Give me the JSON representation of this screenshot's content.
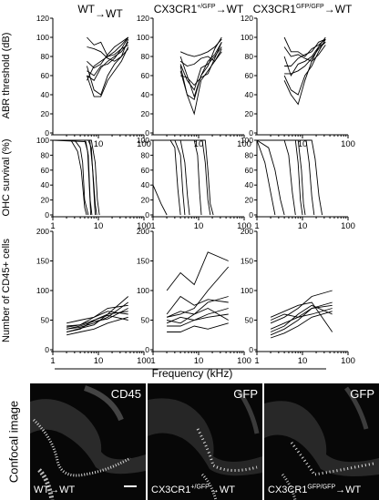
{
  "columns": [
    {
      "pre": "WT",
      "sup": "",
      "post": "→WT"
    },
    {
      "pre": "CX3CR1",
      "sup": "+/GFP",
      "post": "→WT"
    },
    {
      "pre": "CX3CR1",
      "sup": "GFP/GFP",
      "post": "→WT"
    }
  ],
  "x_axis_label": "Frequency (kHz)",
  "confocal": {
    "row_label": "Confocal image",
    "panels": [
      {
        "corner_label": "CD45",
        "genotype_pre": "WT",
        "genotype_sup": "",
        "genotype_post": "→WT"
      },
      {
        "corner_label": "GFP",
        "genotype_pre": "CX3CR1",
        "genotype_sup": "+/GFP",
        "genotype_post": "→WT"
      },
      {
        "corner_label": "GFP",
        "genotype_pre": "CX3CR1",
        "genotype_sup": "GFP/GFP",
        "genotype_post": "→WT"
      }
    ]
  },
  "chart_data": [
    {
      "type": "line",
      "row": "abr",
      "ylabel": "ABR threshold (dB)",
      "xscale": "log",
      "xlim": [
        1,
        100
      ],
      "xticks": [
        10,
        100
      ],
      "xtick_labels": [
        "10",
        "100"
      ],
      "ylim": [
        0,
        120
      ],
      "yticks": [
        0,
        20,
        40,
        60,
        80,
        100,
        120
      ],
      "ytick_labels": [
        "0",
        "20",
        "40",
        "60",
        "80",
        "100",
        "120"
      ],
      "panels": [
        {
          "column": 0,
          "x": [
            5.6,
            8,
            11.3,
            16,
            22.6,
            32,
            45
          ],
          "series": [
            {
              "values": [
                60,
                55,
                68,
                75,
                80,
                85,
                95
              ]
            },
            {
              "values": [
                65,
                60,
                70,
                72,
                78,
                88,
                92
              ]
            },
            {
              "values": [
                70,
                45,
                40,
                60,
                72,
                80,
                98
              ]
            },
            {
              "values": [
                60,
                38,
                38,
                55,
                65,
                75,
                90
              ]
            },
            {
              "values": [
                100,
                92,
                95,
                80,
                82,
                88,
                100
              ]
            },
            {
              "values": [
                75,
                68,
                72,
                82,
                90,
                95,
                100
              ]
            },
            {
              "values": [
                55,
                70,
                75,
                80,
                85,
                92,
                100
              ]
            },
            {
              "values": [
                90,
                88,
                85,
                78,
                75,
                80,
                88
              ]
            }
          ]
        },
        {
          "column": 1,
          "x": [
            4,
            5.6,
            8,
            11.3,
            16,
            22.6,
            32
          ],
          "series": [
            {
              "values": [
                65,
                40,
                35,
                60,
                75,
                82,
                95
              ]
            },
            {
              "values": [
                72,
                55,
                45,
                68,
                72,
                80,
                90
              ]
            },
            {
              "values": [
                80,
                60,
                38,
                60,
                70,
                88,
                100
              ]
            },
            {
              "values": [
                70,
                40,
                20,
                55,
                65,
                75,
                85
              ]
            },
            {
              "values": [
                60,
                58,
                50,
                58,
                62,
                78,
                95
              ]
            },
            {
              "values": [
                75,
                70,
                72,
                78,
                80,
                75,
                88
              ]
            },
            {
              "values": [
                85,
                82,
                80,
                82,
                85,
                90,
                98
              ]
            }
          ]
        },
        {
          "column": 2,
          "x": [
            4,
            5.6,
            8,
            11.3,
            16,
            22.6,
            32
          ],
          "series": [
            {
              "values": [
                55,
                40,
                30,
                55,
                75,
                90,
                95
              ]
            },
            {
              "values": [
                60,
                45,
                40,
                60,
                70,
                85,
                98
              ]
            },
            {
              "values": [
                80,
                60,
                72,
                75,
                80,
                90,
                100
              ]
            },
            {
              "values": [
                100,
                85,
                85,
                80,
                88,
                92,
                98
              ]
            },
            {
              "values": [
                70,
                70,
                78,
                82,
                85,
                95,
                98
              ]
            },
            {
              "values": [
                90,
                80,
                82,
                78,
                75,
                82,
                92
              ]
            },
            {
              "values": [
                62,
                62,
                65,
                70,
                78,
                88,
                95
              ]
            }
          ]
        }
      ]
    },
    {
      "type": "line",
      "row": "ohc",
      "ylabel": "OHC survival (%)",
      "xscale": "log",
      "xlim": [
        1,
        100
      ],
      "xticks": [
        1,
        10,
        100
      ],
      "xtick_labels": [
        "1",
        "10",
        "100"
      ],
      "ylim": [
        0,
        100
      ],
      "yticks": [
        0,
        20,
        40,
        60,
        80,
        100
      ],
      "ytick_labels": [
        "0",
        "20",
        "40",
        "60",
        "80",
        "100"
      ],
      "panels": [
        {
          "column": 0,
          "series": [
            {
              "x": [
                1,
                3,
                4,
                4.5,
                5,
                6
              ],
              "values": [
                100,
                100,
                90,
                70,
                20,
                0
              ]
            },
            {
              "x": [
                1,
                2.5,
                3.5,
                4.2,
                5,
                5.5
              ],
              "values": [
                100,
                100,
                85,
                60,
                10,
                0
              ]
            },
            {
              "x": [
                1,
                5,
                5.8,
                6.3,
                6.8
              ],
              "values": [
                100,
                100,
                85,
                40,
                0
              ]
            },
            {
              "x": [
                1,
                5.3,
                6,
                6.6,
                7.2
              ],
              "values": [
                100,
                98,
                80,
                20,
                0
              ]
            },
            {
              "x": [
                1,
                6,
                7,
                7.8,
                8.5
              ],
              "values": [
                100,
                100,
                90,
                40,
                0
              ]
            },
            {
              "x": [
                1,
                6.5,
                7.5,
                8.5,
                9.2
              ],
              "values": [
                100,
                100,
                60,
                15,
                0
              ]
            },
            {
              "x": [
                1,
                7,
                8.5,
                9.5,
                10.5
              ],
              "values": [
                100,
                100,
                70,
                20,
                0
              ]
            }
          ]
        },
        {
          "column": 1,
          "series": [
            {
              "x": [
                1,
                1.5,
                2
              ],
              "values": [
                40,
                15,
                0
              ]
            },
            {
              "x": [
                1,
                2.4,
                3,
                3.5,
                4
              ],
              "values": [
                100,
                100,
                90,
                35,
                0
              ]
            },
            {
              "x": [
                1,
                3,
                4,
                4.5,
                5
              ],
              "values": [
                100,
                100,
                80,
                30,
                0
              ]
            },
            {
              "x": [
                1,
                4,
                5,
                5.7,
                6.3
              ],
              "values": [
                100,
                100,
                70,
                25,
                0
              ]
            },
            {
              "x": [
                1,
                8,
                9.5,
                10.5,
                11.5
              ],
              "values": [
                100,
                100,
                80,
                30,
                0
              ]
            },
            {
              "x": [
                1,
                12,
                14,
                16,
                18
              ],
              "values": [
                100,
                100,
                70,
                20,
                0
              ]
            },
            {
              "x": [
                1,
                14,
                16,
                18,
                21
              ],
              "values": [
                100,
                100,
                60,
                15,
                0
              ]
            }
          ]
        },
        {
          "column": 2,
          "series": [
            {
              "x": [
                1,
                1.5,
                2,
                2.5
              ],
              "values": [
                100,
                70,
                30,
                0
              ]
            },
            {
              "x": [
                1,
                1.8,
                2.5,
                3.3,
                4
              ],
              "values": [
                100,
                90,
                60,
                20,
                0
              ]
            },
            {
              "x": [
                1,
                4,
                5,
                6,
                7
              ],
              "values": [
                100,
                100,
                80,
                30,
                0
              ]
            },
            {
              "x": [
                1,
                7,
                8,
                9,
                10
              ],
              "values": [
                100,
                100,
                70,
                20,
                0
              ]
            },
            {
              "x": [
                1,
                8,
                9.5,
                10.5,
                11.5
              ],
              "values": [
                100,
                100,
                60,
                15,
                0
              ]
            },
            {
              "x": [
                1,
                12,
                14,
                16,
                18
              ],
              "values": [
                100,
                100,
                70,
                25,
                0
              ]
            },
            {
              "x": [
                1,
                16,
                19,
                23,
                27
              ],
              "values": [
                100,
                100,
                75,
                25,
                0
              ]
            }
          ]
        }
      ]
    },
    {
      "type": "line",
      "row": "cd45",
      "ylabel": "Number of CD45+ cells",
      "xscale": "log",
      "xlim": [
        1,
        100
      ],
      "xticks": [
        1,
        10,
        100
      ],
      "xtick_labels": [
        "1",
        "10",
        "100"
      ],
      "ylim": [
        0,
        200
      ],
      "yticks": [
        0,
        50,
        100,
        150,
        200
      ],
      "ytick_labels": [
        "0",
        "50",
        "100",
        "150",
        "200"
      ],
      "panels": [
        {
          "column": 0,
          "x": [
            2,
            4,
            8,
            16,
            45
          ],
          "series": [
            {
              "values": [
                30,
                35,
                50,
                60,
                90
              ]
            },
            {
              "values": [
                35,
                38,
                45,
                55,
                80
              ]
            },
            {
              "values": [
                40,
                42,
                55,
                70,
                75
              ]
            },
            {
              "values": [
                30,
                36,
                42,
                60,
                65
              ]
            },
            {
              "values": [
                45,
                50,
                55,
                65,
                60
              ]
            },
            {
              "values": [
                25,
                30,
                35,
                45,
                55
              ]
            },
            {
              "values": [
                35,
                40,
                48,
                52,
                70
              ]
            },
            {
              "values": [
                38,
                42,
                50,
                58,
                50
              ]
            }
          ]
        },
        {
          "column": 1,
          "x": [
            2,
            4,
            8,
            16,
            45
          ],
          "series": [
            {
              "values": [
                55,
                60,
                70,
                100,
                140
              ]
            },
            {
              "values": [
                100,
                130,
                110,
                165,
                150
              ]
            },
            {
              "values": [
                50,
                45,
                60,
                80,
                90
              ]
            },
            {
              "values": [
                45,
                55,
                50,
                60,
                70
              ]
            },
            {
              "values": [
                60,
                90,
                75,
                85,
                80
              ]
            },
            {
              "values": [
                40,
                40,
                50,
                55,
                60
              ]
            },
            {
              "values": [
                30,
                30,
                40,
                35,
                45
              ]
            },
            {
              "values": [
                55,
                65,
                60,
                70,
                50
              ]
            }
          ]
        },
        {
          "column": 2,
          "x": [
            2,
            4,
            8,
            16,
            45
          ],
          "series": [
            {
              "values": [
                25,
                35,
                50,
                70,
                75
              ]
            },
            {
              "values": [
                45,
                55,
                70,
                90,
                100
              ]
            },
            {
              "values": [
                35,
                45,
                55,
                60,
                70
              ]
            },
            {
              "values": [
                20,
                28,
                40,
                55,
                65
              ]
            },
            {
              "values": [
                50,
                60,
                55,
                70,
                80
              ]
            },
            {
              "values": [
                30,
                40,
                60,
                75,
                60
              ]
            },
            {
              "values": [
                55,
                65,
                75,
                80,
                30
              ]
            }
          ]
        }
      ]
    }
  ]
}
